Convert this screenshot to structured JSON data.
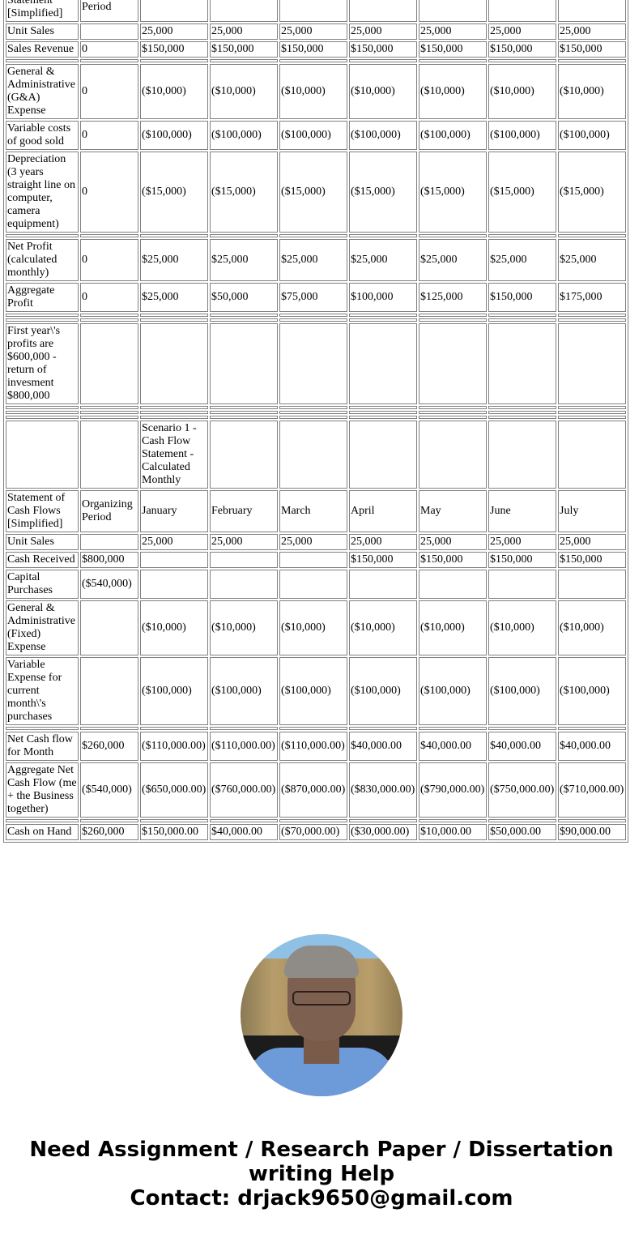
{
  "income_statement": {
    "rows": [
      [
        "Income Statement [Simplified]",
        "Organizing Period",
        "",
        "",
        "",
        "",
        "",
        "",
        ""
      ],
      [
        "Unit Sales",
        "",
        "25,000",
        "25,000",
        "25,000",
        "25,000",
        "25,000",
        "25,000",
        "25,000"
      ],
      [
        "Sales Revenue",
        "0",
        "$150,000",
        "$150,000",
        "$150,000",
        "$150,000",
        "$150,000",
        "$150,000",
        "$150,000"
      ],
      "sep",
      [
        "General & Administrative (G&A) Expense",
        "0",
        "($10,000)",
        "($10,000)",
        "($10,000)",
        "($10,000)",
        "($10,000)",
        "($10,000)",
        "($10,000)"
      ],
      [
        "Variable costs of good sold",
        "0",
        "($100,000)",
        "($100,000)",
        "($100,000)",
        "($100,000)",
        "($100,000)",
        "($100,000)",
        "($100,000)"
      ],
      [
        "Depreciation (3 years straight line on computer, camera equipment)",
        "0",
        "($15,000)",
        "($15,000)",
        "($15,000)",
        "($15,000)",
        "($15,000)",
        "($15,000)",
        "($15,000)"
      ],
      "sep",
      [
        "Net Profit (calculated monthly)",
        "0",
        "$25,000",
        "$25,000",
        "$25,000",
        "$25,000",
        "$25,000",
        "$25,000",
        "$25,000"
      ],
      [
        "Aggregate Profit",
        "0",
        "$25,000",
        "$50,000",
        "$75,000",
        "$100,000",
        "$125,000",
        "$150,000",
        "$175,000"
      ],
      "sep",
      "sep",
      [
        "First year\\'s profits are $600,000 - return of invesment $800,000",
        "",
        "",
        "",
        "",
        "",
        "",
        "",
        ""
      ],
      "sep",
      "sep",
      "sep"
    ]
  },
  "cash_flow_statement": {
    "rows": [
      [
        "",
        "",
        "Scenario 1 - Cash Flow Statement - Calculated Monthly",
        "",
        "",
        "",
        "",
        "",
        ""
      ],
      [
        "Statement of Cash Flows [Simplified]",
        "Organizing Period",
        "January",
        "February",
        "March",
        "April",
        "May",
        "June",
        "July"
      ],
      [
        "Unit Sales",
        "",
        "25,000",
        "25,000",
        "25,000",
        "25,000",
        "25,000",
        "25,000",
        "25,000"
      ],
      [
        "Cash Received",
        "$800,000",
        "",
        "",
        "",
        "$150,000",
        "$150,000",
        "$150,000",
        "$150,000"
      ],
      [
        "Capital Purchases",
        "($540,000)",
        "",
        "",
        "",
        "",
        "",
        "",
        ""
      ],
      [
        "General & Administrative (Fixed) Expense",
        "",
        "($10,000)",
        "($10,000)",
        "($10,000)",
        "($10,000)",
        "($10,000)",
        "($10,000)",
        "($10,000)"
      ],
      [
        "Variable Expense for current month\\'s purchases",
        "",
        "($100,000)",
        "($100,000)",
        "($100,000)",
        "($100,000)",
        "($100,000)",
        "($100,000)",
        "($100,000)"
      ],
      "sep",
      [
        "Net Cash flow for Month",
        "$260,000",
        "($110,000.00)",
        "($110,000.00)",
        "($110,000.00)",
        "$40,000.00",
        "$40,000.00",
        "$40,000.00",
        "$40,000.00"
      ],
      [
        "Aggregate Net Cash Flow (me + the Business together)",
        "($540,000)",
        "($650,000.00)",
        "($760,000.00)",
        "($870,000.00)",
        "($830,000.00)",
        "($790,000.00)",
        "($750,000.00)",
        "($710,000.00)"
      ],
      "sep",
      [
        "Cash on Hand",
        "$260,000",
        "$150,000.00",
        "$40,000.00",
        "($70,000.00)",
        "($30,000.00)",
        "$10,000.00",
        "$50,000.00",
        "$90,000.00"
      ]
    ]
  },
  "profile_photo": {
    "icon": "author-photo"
  },
  "footer": {
    "line1": "Need Assignment / Research Paper / Dissertation",
    "line2": "writing Help",
    "line3": "Contact: drjack9650@gmail.com"
  }
}
